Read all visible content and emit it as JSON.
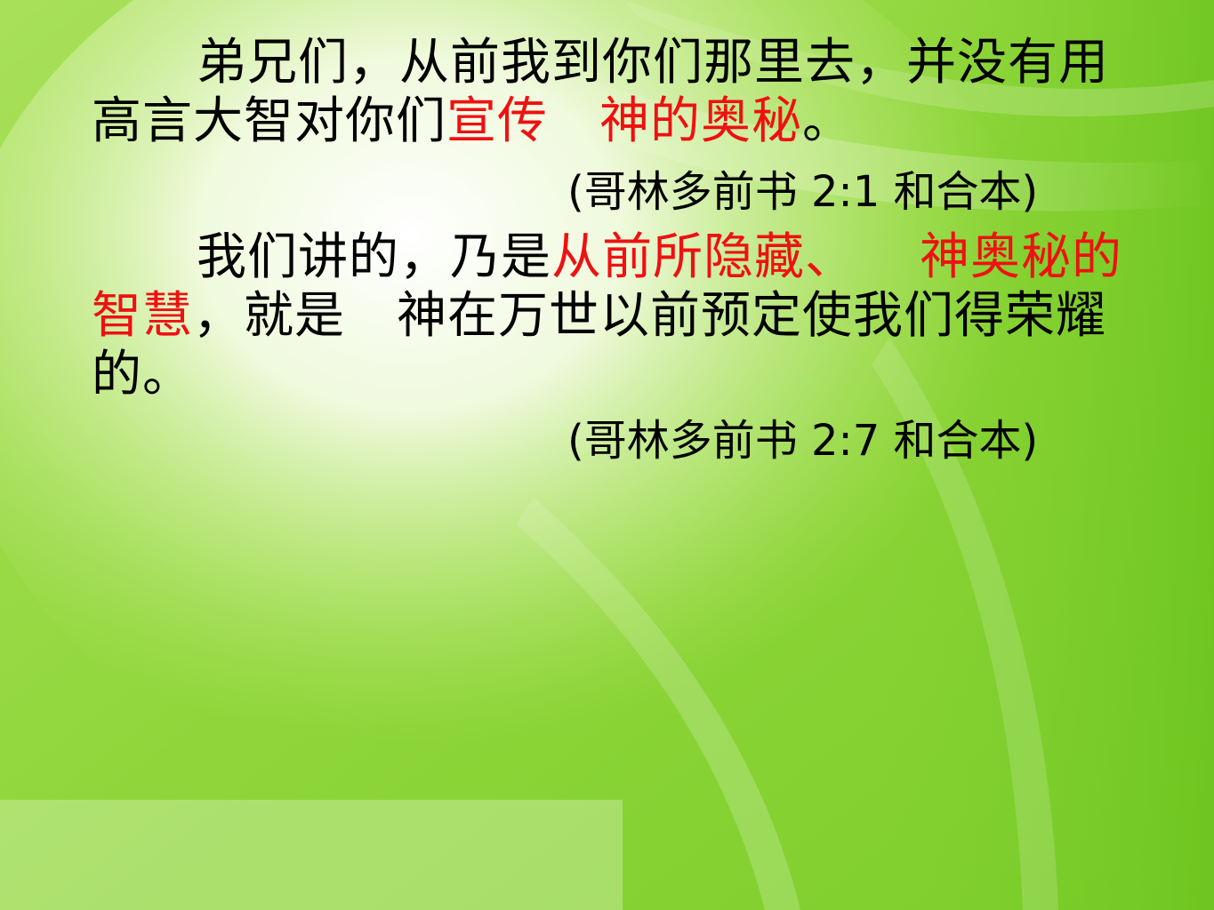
{
  "slide": {
    "colors": {
      "background_base": "#8fd83a",
      "highlight": "#ee1111",
      "text": "#000000"
    },
    "verse1": {
      "part1": "弟兄们，从前我到你们那里去，并没有用高言大智对你们",
      "highlight_a": "宣传",
      "highlight_b": "神的奥秘",
      "end": "。"
    },
    "reference1": "(哥林多前书 2:1 和合本)",
    "verse2": {
      "part1": "我们讲的，乃是",
      "highlight_a": "从前所隐藏、",
      "highlight_b": "神奥秘的智慧",
      "part2": "，就是",
      "part3": "神在万世以前预定使我们得荣耀的。"
    },
    "reference2": "(哥林多前书 2:7 和合本)"
  }
}
